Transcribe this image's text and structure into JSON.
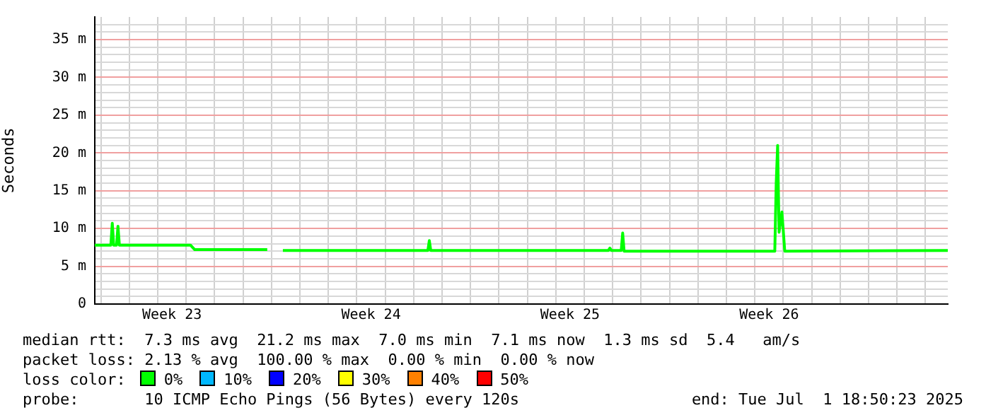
{
  "chart_data": {
    "type": "line",
    "ylabel": "Seconds",
    "legend_title": "loss color:",
    "legend": "bottom",
    "grid": true,
    "marker": "none",
    "line_style": "solid",
    "x": [
      "2025-06-01T18:50",
      "2025-06-02T08:24",
      "2025-06-02T09:36",
      "2025-06-02T10:48",
      "2025-06-02T13:12",
      "2025-06-02T14:24",
      "2025-06-02T15:36",
      "2025-06-05T03:36",
      "2025-06-05T07:12",
      "2025-06-07T20:24",
      "2025-06-08T02:24",
      "2025-06-08T09:36",
      "2025-06-13T12:00",
      "2025-06-13T13:12",
      "2025-06-13T14:24",
      "2025-06-19T20:24",
      "2025-06-19T21:36",
      "2025-06-19T22:48",
      "2025-06-20T07:12",
      "2025-06-20T08:24",
      "2025-06-20T09:36",
      "2025-06-25T16:48",
      "2025-06-25T18:00",
      "2025-06-25T19:12",
      "2025-06-25T20:24",
      "2025-06-25T22:48",
      "2025-06-26T01:12",
      "2025-07-01T18:50"
    ],
    "xlim": [
      "2025-06-01T18:50",
      "2025-07-01T18:50"
    ],
    "xticks": [
      {
        "value": "2025-06-02",
        "label": null
      },
      {
        "value": "2025-06-03",
        "label": null
      },
      {
        "value": "2025-06-04",
        "label": null
      },
      {
        "value": "2025-06-04T12:00",
        "label": "Week 23"
      },
      {
        "value": "2025-06-05",
        "label": null
      },
      {
        "value": "2025-06-06",
        "label": null
      },
      {
        "value": "2025-06-07",
        "label": null
      },
      {
        "value": "2025-06-08",
        "label": null
      },
      {
        "value": "2025-06-09",
        "label": null
      },
      {
        "value": "2025-06-10",
        "label": null
      },
      {
        "value": "2025-06-11",
        "label": null
      },
      {
        "value": "2025-06-11T12:00",
        "label": "Week 24"
      },
      {
        "value": "2025-06-12",
        "label": null
      },
      {
        "value": "2025-06-13",
        "label": null
      },
      {
        "value": "2025-06-14",
        "label": null
      },
      {
        "value": "2025-06-15",
        "label": null
      },
      {
        "value": "2025-06-16",
        "label": null
      },
      {
        "value": "2025-06-17",
        "label": null
      },
      {
        "value": "2025-06-18",
        "label": null
      },
      {
        "value": "2025-06-18T12:00",
        "label": "Week 25"
      },
      {
        "value": "2025-06-19",
        "label": null
      },
      {
        "value": "2025-06-20",
        "label": null
      },
      {
        "value": "2025-06-21",
        "label": null
      },
      {
        "value": "2025-06-22",
        "label": null
      },
      {
        "value": "2025-06-23",
        "label": null
      },
      {
        "value": "2025-06-24",
        "label": null
      },
      {
        "value": "2025-06-25",
        "label": null
      },
      {
        "value": "2025-06-25T12:00",
        "label": "Week 26"
      },
      {
        "value": "2025-06-26",
        "label": null
      },
      {
        "value": "2025-06-27",
        "label": null
      },
      {
        "value": "2025-06-28",
        "label": null
      },
      {
        "value": "2025-06-29",
        "label": null
      },
      {
        "value": "2025-06-30",
        "label": null
      },
      {
        "value": "2025-07-01",
        "label": null
      }
    ],
    "ylim": [
      0,
      38
    ],
    "yticks": [
      0,
      {
        "value": 1,
        "label": null
      },
      {
        "value": 2,
        "label": null
      },
      {
        "value": 3,
        "label": null
      },
      {
        "value": 4,
        "label": null
      },
      {
        "value": 5,
        "label": "5 m"
      },
      {
        "value": 6,
        "label": null
      },
      {
        "value": 7,
        "label": null
      },
      {
        "value": 8,
        "label": null
      },
      {
        "value": 9,
        "label": null
      },
      {
        "value": 10,
        "label": "10 m"
      },
      {
        "value": 11,
        "label": null
      },
      {
        "value": 12,
        "label": null
      },
      {
        "value": 13,
        "label": null
      },
      {
        "value": 14,
        "label": null
      },
      {
        "value": 15,
        "label": "15 m"
      },
      {
        "value": 16,
        "label": null
      },
      {
        "value": 17,
        "label": null
      },
      {
        "value": 18,
        "label": null
      },
      {
        "value": 19,
        "label": null
      },
      {
        "value": 20,
        "label": "20 m"
      },
      {
        "value": 21,
        "label": null
      },
      {
        "value": 22,
        "label": null
      },
      {
        "value": 23,
        "label": null
      },
      {
        "value": 24,
        "label": null
      },
      {
        "value": 25,
        "label": "25 m"
      },
      {
        "value": 26,
        "label": null
      },
      {
        "value": 27,
        "label": null
      },
      {
        "value": 28,
        "label": null
      },
      {
        "value": 29,
        "label": null
      },
      {
        "value": 30,
        "label": "30 m"
      },
      {
        "value": 31,
        "label": null
      },
      {
        "value": 32,
        "label": null
      },
      {
        "value": 33,
        "label": null
      },
      {
        "value": 34,
        "label": null
      },
      {
        "value": 35,
        "label": "35 m"
      },
      {
        "value": 36,
        "label": null
      },
      {
        "value": 37,
        "label": null
      }
    ],
    "series": [
      {
        "name": "0%",
        "color": "#00ff00",
        "values": [
          7.8,
          7.8,
          10.7,
          7.8,
          7.8,
          10.3,
          7.8,
          7.8,
          7.2,
          7.2,
          null,
          7.1,
          7.1,
          8.4,
          7.1,
          7.1,
          7.4,
          7.1,
          7.1,
          9.4,
          7.0,
          7.0,
          16,
          21,
          9.5,
          12.2,
          7.0,
          7.1
        ]
      },
      {
        "name": "10%",
        "color": "#00b8ff",
        "values": [
          null,
          null,
          null,
          null,
          null,
          null,
          null,
          null,
          null,
          null,
          null,
          null,
          null,
          null,
          null,
          null,
          null,
          null,
          null,
          null,
          null,
          null,
          null,
          null,
          null,
          null,
          null,
          null
        ]
      },
      {
        "name": "20%",
        "color": "#0000ff",
        "values": [
          null,
          null,
          null,
          null,
          null,
          null,
          null,
          null,
          null,
          null,
          null,
          null,
          null,
          null,
          null,
          null,
          null,
          null,
          null,
          null,
          null,
          null,
          null,
          null,
          null,
          null,
          null,
          null
        ]
      },
      {
        "name": "30%",
        "color": "#ffff00",
        "values": [
          null,
          null,
          null,
          null,
          null,
          null,
          null,
          null,
          null,
          null,
          null,
          null,
          null,
          null,
          null,
          null,
          null,
          null,
          null,
          null,
          null,
          null,
          null,
          null,
          null,
          null,
          null,
          null
        ]
      },
      {
        "name": "40%",
        "color": "#ff8000",
        "values": [
          null,
          null,
          null,
          null,
          null,
          null,
          null,
          null,
          null,
          null,
          null,
          null,
          null,
          null,
          null,
          null,
          null,
          null,
          null,
          null,
          null,
          null,
          null,
          null,
          null,
          null,
          null,
          null
        ]
      },
      {
        "name": "50%",
        "color": "#ff0000",
        "values": [
          null,
          null,
          null,
          null,
          null,
          null,
          null,
          null,
          null,
          null,
          null,
          null,
          null,
          null,
          null,
          null,
          null,
          null,
          null,
          null,
          null,
          null,
          null,
          null,
          null,
          null,
          null,
          null
        ]
      }
    ],
    "annotations": [
      "median rtt:  7.3 ms avg  21.2 ms max  7.0 ms min  7.1 ms now  1.3 ms sd  5.4   am/s",
      "packet loss: 2.13 % avg  100.00 % max  0.00 % min  0.00 % now",
      "probe:       10 ICMP Echo Pings (56 Bytes) every 120s",
      "end: Tue Jul  1 18:50:23 2025"
    ]
  }
}
